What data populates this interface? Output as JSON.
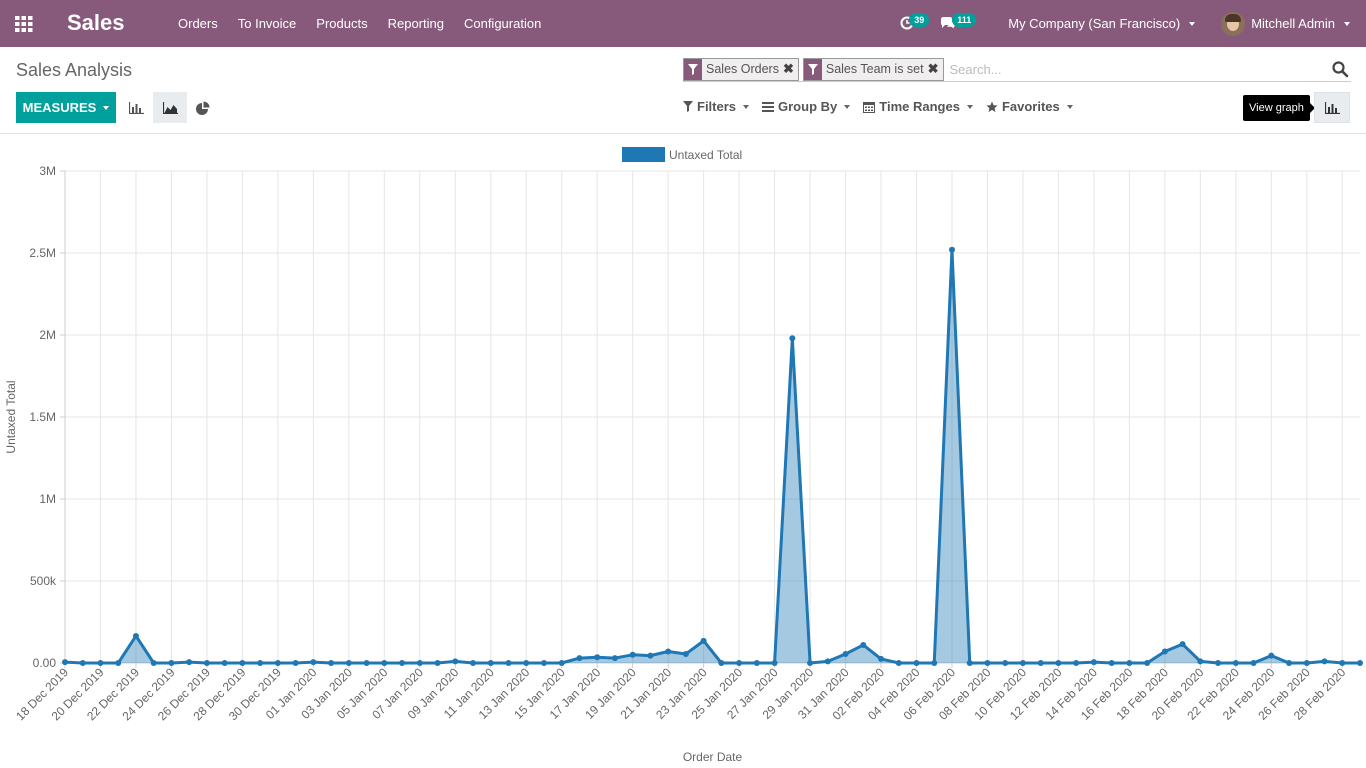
{
  "navbar": {
    "brand": "Sales",
    "menu": [
      "Orders",
      "To Invoice",
      "Products",
      "Reporting",
      "Configuration"
    ],
    "activity_count": "39",
    "message_count": "111",
    "company": "My Company (San Francisco)",
    "user": "Mitchell Admin",
    "bg_color": "#875a7b"
  },
  "control_panel": {
    "breadcrumb": "Sales Analysis",
    "facets": [
      "Sales Orders",
      "Sales Team is set"
    ],
    "search_placeholder": "Search...",
    "measures_label": "MEASURES",
    "filters": [
      "Filters",
      "Group By",
      "Time Ranges",
      "Favorites"
    ],
    "tooltip": "View graph",
    "accent_color": "#00a09d"
  },
  "chart_data": {
    "type": "line",
    "legend": [
      "Untaxed Total"
    ],
    "legend_position": "top",
    "xlabel": "Order Date",
    "ylabel": "Untaxed Total",
    "ylim": [
      0,
      3000000
    ],
    "yticks": [
      "0.00",
      "500k",
      "1M",
      "1.5M",
      "2M",
      "2.5M",
      "3M"
    ],
    "grid": true,
    "series_color": "#1f77b4",
    "x": [
      "18 Dec 2019",
      "19 Dec 2019",
      "20 Dec 2019",
      "21 Dec 2019",
      "22 Dec 2019",
      "23 Dec 2019",
      "24 Dec 2019",
      "25 Dec 2019",
      "26 Dec 2019",
      "27 Dec 2019",
      "28 Dec 2019",
      "29 Dec 2019",
      "30 Dec 2019",
      "31 Dec 2019",
      "01 Jan 2020",
      "02 Jan 2020",
      "03 Jan 2020",
      "04 Jan 2020",
      "05 Jan 2020",
      "06 Jan 2020",
      "07 Jan 2020",
      "08 Jan 2020",
      "09 Jan 2020",
      "10 Jan 2020",
      "11 Jan 2020",
      "12 Jan 2020",
      "13 Jan 2020",
      "14 Jan 2020",
      "15 Jan 2020",
      "16 Jan 2020",
      "17 Jan 2020",
      "18 Jan 2020",
      "19 Jan 2020",
      "20 Jan 2020",
      "21 Jan 2020",
      "22 Jan 2020",
      "23 Jan 2020",
      "24 Jan 2020",
      "25 Jan 2020",
      "26 Jan 2020",
      "27 Jan 2020",
      "28 Jan 2020",
      "29 Jan 2020",
      "30 Jan 2020",
      "31 Jan 2020",
      "01 Feb 2020",
      "02 Feb 2020",
      "03 Feb 2020",
      "04 Feb 2020",
      "05 Feb 2020",
      "06 Feb 2020",
      "07 Feb 2020",
      "08 Feb 2020",
      "09 Feb 2020",
      "10 Feb 2020",
      "11 Feb 2020",
      "12 Feb 2020",
      "13 Feb 2020",
      "14 Feb 2020",
      "15 Feb 2020",
      "16 Feb 2020",
      "17 Feb 2020",
      "18 Feb 2020",
      "19 Feb 2020",
      "20 Feb 2020",
      "21 Feb 2020",
      "22 Feb 2020",
      "23 Feb 2020",
      "24 Feb 2020",
      "25 Feb 2020",
      "26 Feb 2020",
      "27 Feb 2020",
      "28 Feb 2020",
      "29 Feb 2020"
    ],
    "tick_every": 2,
    "values": [
      5000,
      0,
      0,
      0,
      165000,
      0,
      0,
      5000,
      0,
      0,
      0,
      0,
      0,
      0,
      5000,
      0,
      0,
      0,
      0,
      0,
      0,
      0,
      10000,
      0,
      0,
      0,
      0,
      0,
      0,
      30000,
      35000,
      30000,
      50000,
      45000,
      70000,
      55000,
      135000,
      0,
      0,
      0,
      0,
      1980000,
      0,
      10000,
      55000,
      110000,
      25000,
      0,
      0,
      0,
      2520000,
      0,
      0,
      0,
      0,
      0,
      0,
      0,
      5000,
      0,
      0,
      0,
      70000,
      115000,
      10000,
      0,
      0,
      0,
      45000,
      0,
      0,
      10000,
      0,
      0
    ]
  }
}
